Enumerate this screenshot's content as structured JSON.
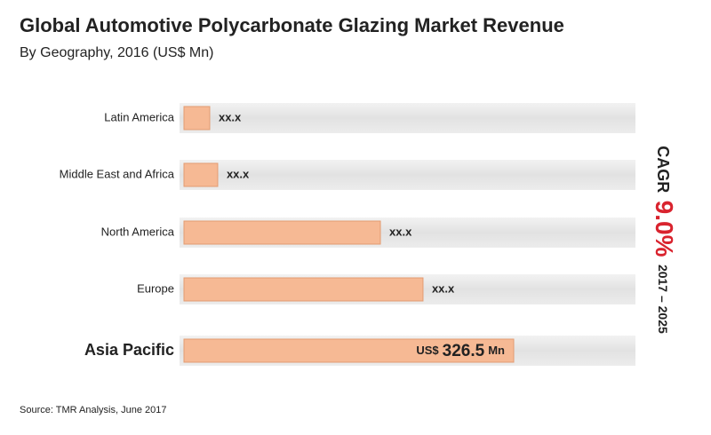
{
  "chart_data": {
    "type": "bar",
    "orientation": "horizontal",
    "title": "Global Automotive Polycarbonate Glazing Market Revenue",
    "subtitle": "By Geography, 2016 (US$ Mn)",
    "categories": [
      "Latin America",
      "Middle East and Africa",
      "North America",
      "Europe",
      "Asia Pacific"
    ],
    "values": [
      25.5,
      33.4,
      194.5,
      236.7,
      326.5
    ],
    "value_labels": [
      "xx.x",
      "xx.x",
      "xx.x",
      "xx.x",
      "326.5"
    ],
    "value_prefix": "US$",
    "value_suffix": "Mn",
    "color": "#f6b994",
    "highlight_color": "#d9232e",
    "annotations": {
      "cagr_label": "CAGR",
      "cagr_value": "9.0%",
      "period": "2017 – 2025"
    },
    "source": "Source: TMR Analysis, June 2017"
  }
}
